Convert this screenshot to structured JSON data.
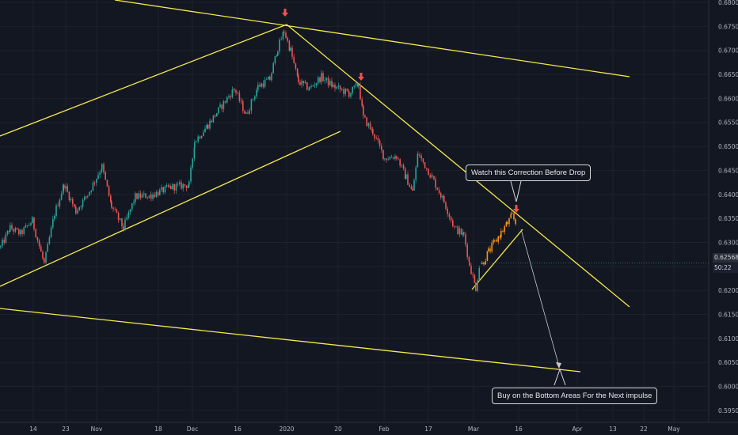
{
  "chart_data": {
    "type": "candlestick",
    "title": "",
    "y_axis": {
      "ticks": [
        "0.68000",
        "0.67500",
        "0.67000",
        "0.66500",
        "0.66000",
        "0.65500",
        "0.65000",
        "0.64500",
        "0.64000",
        "0.63500",
        "0.63000",
        "0.62500",
        "0.62000",
        "0.61500",
        "0.61000",
        "0.60500",
        "0.60000",
        "0.59500"
      ],
      "range": [
        0.5925,
        0.6805
      ]
    },
    "x_axis": {
      "ticks": [
        "14",
        "23",
        "Nov",
        "18",
        "Dec",
        "16",
        "2020",
        "20",
        "Feb",
        "17",
        "Mar",
        "16",
        "Apr",
        "13",
        "22",
        "May"
      ]
    },
    "current_price": "0.62568",
    "countdown": "50:22",
    "price_path": [
      [
        0,
        0.629
      ],
      [
        12,
        0.633
      ],
      [
        25,
        0.6318
      ],
      [
        40,
        0.6345
      ],
      [
        55,
        0.6255
      ],
      [
        68,
        0.636
      ],
      [
        80,
        0.642
      ],
      [
        95,
        0.6365
      ],
      [
        110,
        0.64
      ],
      [
        128,
        0.6458
      ],
      [
        140,
        0.6375
      ],
      [
        155,
        0.633
      ],
      [
        170,
        0.6395
      ],
      [
        190,
        0.6398
      ],
      [
        215,
        0.6415
      ],
      [
        238,
        0.642
      ],
      [
        245,
        0.651
      ],
      [
        262,
        0.6545
      ],
      [
        275,
        0.6575
      ],
      [
        295,
        0.662
      ],
      [
        310,
        0.6565
      ],
      [
        325,
        0.6625
      ],
      [
        340,
        0.664
      ],
      [
        350,
        0.6705
      ],
      [
        358,
        0.674
      ],
      [
        366,
        0.67
      ],
      [
        376,
        0.6635
      ],
      [
        390,
        0.662
      ],
      [
        405,
        0.6645
      ],
      [
        420,
        0.6625
      ],
      [
        440,
        0.661
      ],
      [
        452,
        0.663
      ],
      [
        458,
        0.656
      ],
      [
        470,
        0.653
      ],
      [
        485,
        0.6475
      ],
      [
        500,
        0.648
      ],
      [
        512,
        0.6435
      ],
      [
        520,
        0.6405
      ],
      [
        527,
        0.6485
      ],
      [
        545,
        0.6435
      ],
      [
        560,
        0.6385
      ],
      [
        573,
        0.633
      ],
      [
        585,
        0.6315
      ],
      [
        592,
        0.6255
      ],
      [
        600,
        0.6205
      ],
      [
        605,
        0.6255
      ]
    ],
    "projection_path": [
      [
        608,
        0.6255
      ],
      [
        616,
        0.628
      ],
      [
        624,
        0.63
      ],
      [
        632,
        0.632
      ],
      [
        640,
        0.634
      ],
      [
        646,
        0.6355
      ],
      [
        652,
        0.6335
      ]
    ],
    "colors": {
      "up": "#26a69a",
      "down": "#ef5350",
      "projection": "#f7931a",
      "trendline": "#f5e94a",
      "arrow_marker": "#ef5350",
      "grid": "#1e222d",
      "axis_text": "#b2b5be"
    },
    "annotations": {
      "top_callout": "Watch this Correction Before Drop",
      "bottom_callout": "Buy on the Bottom Areas For the Next impulse"
    }
  }
}
